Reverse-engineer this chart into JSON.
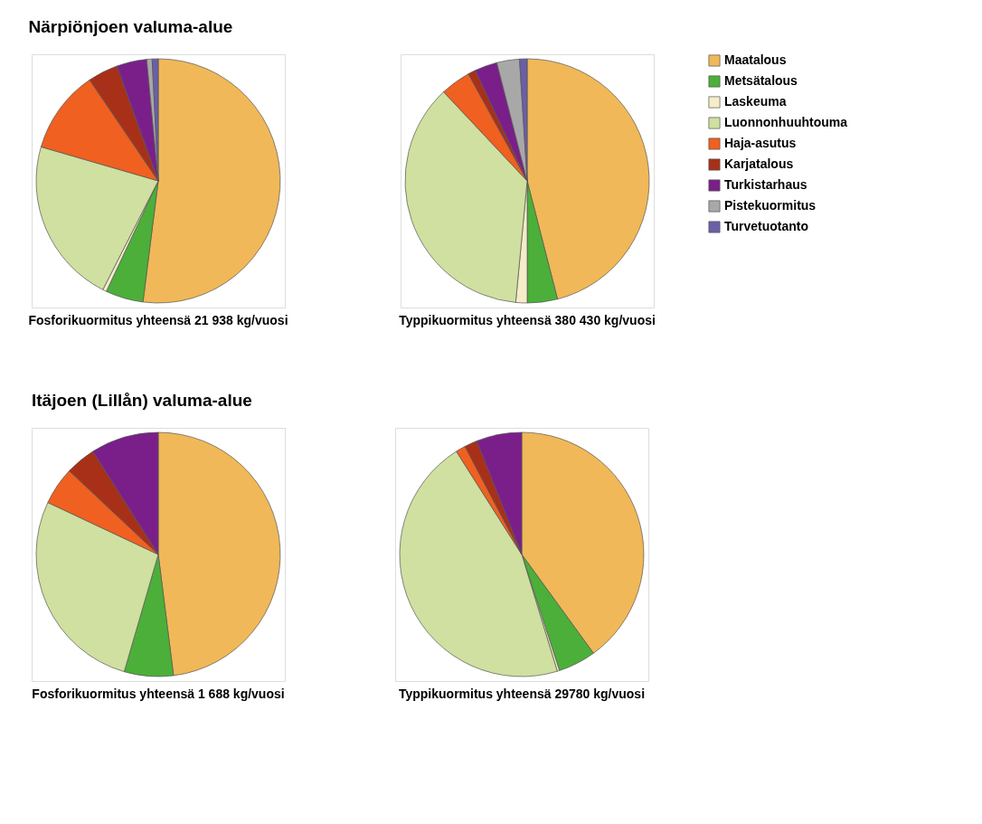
{
  "chart_data": [
    {
      "type": "pie",
      "title": "Närpiönjoen valuma-alue",
      "annotations": [
        "Fosforikuormitus yhteensä 21 938 kg/vuosi"
      ],
      "categories": [
        null,
        null,
        null,
        null,
        null,
        null,
        null,
        null,
        null
      ],
      "values": [
        52,
        5,
        0.5,
        22,
        11,
        4,
        4,
        0.7,
        0.8
      ],
      "colors": [
        "#f0b858",
        "#4caf3a",
        "#f5ecc8",
        "#cfe0a0",
        "#f06020",
        "#a83018",
        "#7a1f8a",
        "#a8a8a8",
        "#6a5fa8"
      ]
    },
    {
      "type": "pie",
      "annotations": [
        "Typpikuormitus yhteensä 380 430 kg/vuosi"
      ],
      "legend": "right",
      "categories": [
        "Maatalous",
        "Metsätalous",
        "Laskeuma",
        "Luonnonhuuhtouma",
        "Haja-asutus",
        "Karjatalous",
        "Turkistarhaus",
        "Pistekuormitus",
        "Turvetuotanto"
      ],
      "values": [
        46,
        4,
        1.5,
        36.5,
        4,
        1,
        3,
        3,
        1
      ],
      "colors": [
        "#f0b858",
        "#4caf3a",
        "#f5ecc8",
        "#cfe0a0",
        "#f06020",
        "#a83018",
        "#7a1f8a",
        "#a8a8a8",
        "#6a5fa8"
      ]
    },
    {
      "type": "pie",
      "title": "Itäjoen (Lillån) valuma-alue",
      "annotations": [
        "Fosforikuormitus yhteensä 1 688 kg/vuosi"
      ],
      "categories": [
        null,
        null,
        null,
        null,
        null,
        null,
        null,
        null,
        null
      ],
      "values": [
        48,
        6.5,
        0,
        27.5,
        5,
        4,
        9,
        0,
        0
      ],
      "colors": [
        "#f0b858",
        "#4caf3a",
        "#f5ecc8",
        "#cfe0a0",
        "#f06020",
        "#a83018",
        "#7a1f8a",
        "#a8a8a8",
        "#6a5fa8"
      ]
    },
    {
      "type": "pie",
      "annotations": [
        "Typpikuormitus yhteensä 29780 kg/vuosi"
      ],
      "categories": [
        null,
        null,
        null,
        null,
        null,
        null,
        null,
        null,
        null
      ],
      "values": [
        40,
        5,
        0.3,
        45.7,
        1.3,
        1.7,
        6,
        0,
        0
      ],
      "colors": [
        "#f0b858",
        "#4caf3a",
        "#f5ecc8",
        "#cfe0a0",
        "#f06020",
        "#a83018",
        "#7a1f8a",
        "#a8a8a8",
        "#6a5fa8"
      ]
    }
  ]
}
